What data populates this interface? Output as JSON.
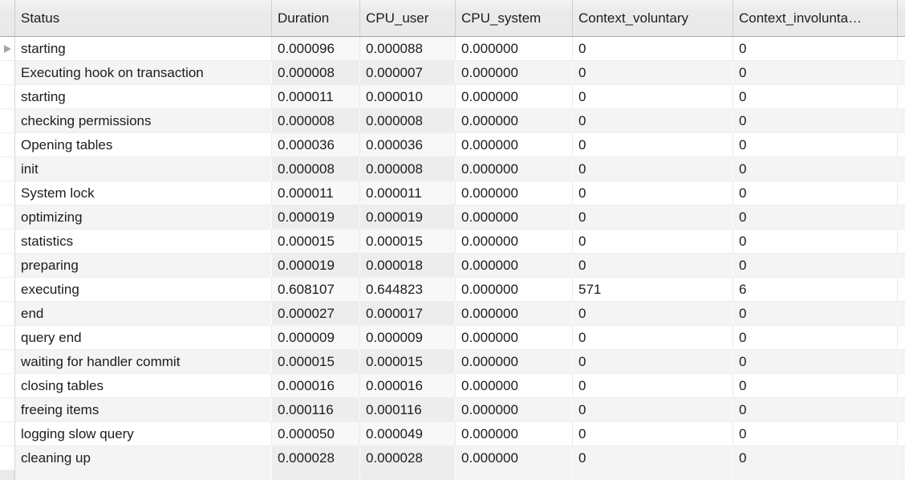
{
  "colors": {
    "header_bg": "#e9e9e9",
    "header_border": "#a7a7a7",
    "row_bg": "#ffffff",
    "row_alt_bg": "#f4f4f4",
    "grid_line": "#e9e9e9",
    "text": "#1c1c1e",
    "row_pointer": "#a5a5a5"
  },
  "icons": {
    "current_row_marker": "right-pointing-triangle"
  },
  "table": {
    "current_row_index": 0,
    "columns": [
      {
        "key": "status",
        "label": "Status"
      },
      {
        "key": "duration",
        "label": "Duration"
      },
      {
        "key": "cpu_user",
        "label": "CPU_user"
      },
      {
        "key": "cpu_system",
        "label": "CPU_system"
      },
      {
        "key": "context_voluntary",
        "label": "Context_voluntary"
      },
      {
        "key": "context_involuntary",
        "label": "Context_involunta…"
      }
    ],
    "rows": [
      [
        "starting",
        "0.000096",
        "0.000088",
        "0.000000",
        "0",
        "0"
      ],
      [
        "Executing hook on transaction",
        "0.000008",
        "0.000007",
        "0.000000",
        "0",
        "0"
      ],
      [
        "starting",
        "0.000011",
        "0.000010",
        "0.000000",
        "0",
        "0"
      ],
      [
        "checking permissions",
        "0.000008",
        "0.000008",
        "0.000000",
        "0",
        "0"
      ],
      [
        "Opening tables",
        "0.000036",
        "0.000036",
        "0.000000",
        "0",
        "0"
      ],
      [
        "init",
        "0.000008",
        "0.000008",
        "0.000000",
        "0",
        "0"
      ],
      [
        "System lock",
        "0.000011",
        "0.000011",
        "0.000000",
        "0",
        "0"
      ],
      [
        "optimizing",
        "0.000019",
        "0.000019",
        "0.000000",
        "0",
        "0"
      ],
      [
        "statistics",
        "0.000015",
        "0.000015",
        "0.000000",
        "0",
        "0"
      ],
      [
        "preparing",
        "0.000019",
        "0.000018",
        "0.000000",
        "0",
        "0"
      ],
      [
        "executing",
        "0.608107",
        "0.644823",
        "0.000000",
        "571",
        "6"
      ],
      [
        "end",
        "0.000027",
        "0.000017",
        "0.000000",
        "0",
        "0"
      ],
      [
        "query end",
        "0.000009",
        "0.000009",
        "0.000000",
        "0",
        "0"
      ],
      [
        "waiting for handler commit",
        "0.000015",
        "0.000015",
        "0.000000",
        "0",
        "0"
      ],
      [
        "closing tables",
        "0.000016",
        "0.000016",
        "0.000000",
        "0",
        "0"
      ],
      [
        "freeing items",
        "0.000116",
        "0.000116",
        "0.000000",
        "0",
        "0"
      ],
      [
        "logging slow query",
        "0.000050",
        "0.000049",
        "0.000000",
        "0",
        "0"
      ],
      [
        "cleaning up",
        "0.000028",
        "0.000028",
        "0.000000",
        "0",
        "0"
      ]
    ]
  }
}
